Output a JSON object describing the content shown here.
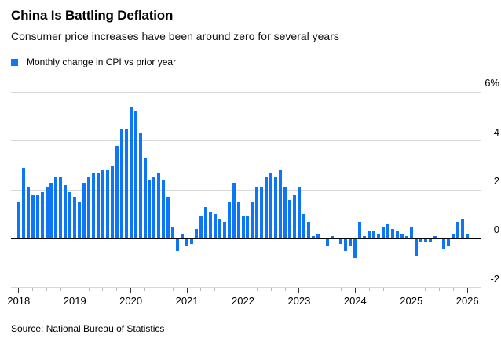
{
  "chart_data": {
    "type": "bar",
    "title": "China Is Battling Deflation",
    "subtitle": "Consumer price increases have been around zero for several years",
    "legend_label": "Monthly change in CPI vs prior year",
    "source": "Source: National Bureau of Statistics",
    "unit": "%",
    "ylim": [
      -2,
      6
    ],
    "grid": "horizontal",
    "legend_position": "top-left",
    "y_axis_side": "right",
    "y_ticks": [
      {
        "label": "6%",
        "value": 6
      },
      {
        "label": "4",
        "value": 4
      },
      {
        "label": "2",
        "value": 2
      },
      {
        "label": "0",
        "value": 0
      },
      {
        "label": "-2",
        "value": -2
      }
    ],
    "x_ticks": [
      {
        "label": "2018",
        "month_index": 0
      },
      {
        "label": "2019",
        "month_index": 12
      },
      {
        "label": "2020",
        "month_index": 24
      },
      {
        "label": "2021",
        "month_index": 36
      },
      {
        "label": "2022",
        "month_index": 48
      },
      {
        "label": "2023",
        "month_index": 60
      },
      {
        "label": "2024",
        "month_index": 72
      },
      {
        "label": "2025",
        "month_index": 84
      },
      {
        "label": "2026",
        "month_index": 96
      }
    ],
    "minor_tick_every_months": 3,
    "colors": {
      "bar": "#0d76f7",
      "gridline": "#d8d8d8",
      "zero_line": "#000000"
    },
    "series": [
      {
        "name": "Monthly change in CPI vs prior year",
        "start": "2018-01",
        "end": "2026-01",
        "frequency": "monthly",
        "values": [
          1.5,
          2.9,
          2.1,
          1.8,
          1.8,
          1.9,
          2.1,
          2.3,
          2.5,
          2.5,
          2.2,
          1.9,
          1.7,
          1.5,
          2.3,
          2.5,
          2.7,
          2.7,
          2.8,
          2.8,
          3.0,
          3.8,
          4.5,
          4.5,
          5.4,
          5.2,
          4.3,
          3.3,
          2.4,
          2.5,
          2.7,
          2.4,
          1.7,
          0.5,
          -0.5,
          0.2,
          -0.3,
          -0.2,
          0.4,
          0.9,
          1.3,
          1.1,
          1.0,
          0.8,
          0.7,
          1.5,
          2.3,
          1.5,
          0.9,
          0.9,
          1.5,
          2.1,
          2.1,
          2.5,
          2.7,
          2.5,
          2.8,
          2.1,
          1.6,
          1.8,
          2.1,
          1.0,
          0.7,
          0.1,
          0.2,
          0.0,
          -0.3,
          0.1,
          0.0,
          -0.2,
          -0.5,
          -0.3,
          -0.8,
          0.7,
          0.1,
          0.3,
          0.3,
          0.2,
          0.5,
          0.6,
          0.4,
          0.3,
          0.2,
          0.1,
          0.5,
          -0.7,
          -0.1,
          -0.1,
          -0.1,
          0.1,
          0.0,
          -0.4,
          -0.3,
          0.2,
          0.7,
          0.8,
          0.2
        ]
      }
    ]
  }
}
